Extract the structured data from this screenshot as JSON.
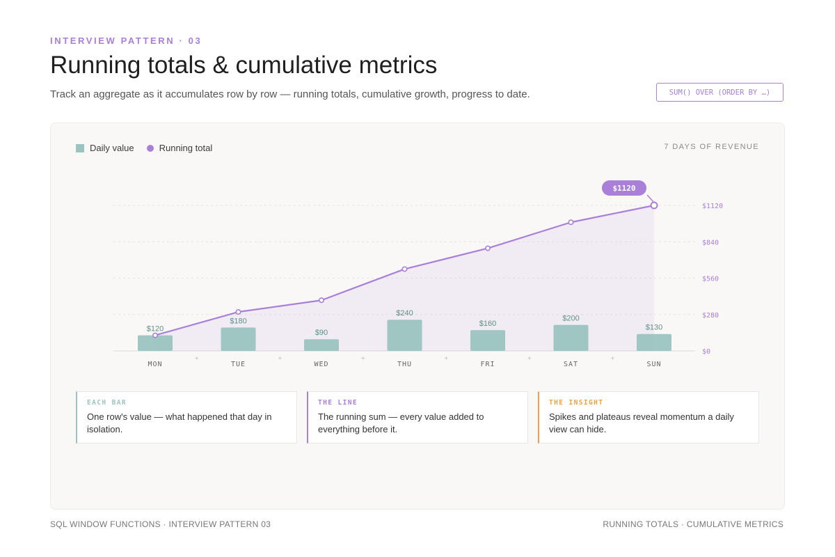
{
  "header": {
    "eyebrow": "INTERVIEW PATTERN · 03",
    "title": "Running totals & cumulative metrics",
    "subtitle": "Track an aggregate as it accumulates row by row — running totals, cumulative growth, progress to date.",
    "sql_chip": "SUM() OVER (ORDER BY …)"
  },
  "legend": {
    "bar_label": "Daily value",
    "line_label": "Running total"
  },
  "chart_meta": "7 DAYS OF REVENUE",
  "chart_data": {
    "type": "bar",
    "title": "",
    "categories": [
      "MON",
      "TUE",
      "WED",
      "THU",
      "FRI",
      "SAT",
      "SUN"
    ],
    "series": [
      {
        "name": "Daily value",
        "type": "bar",
        "values": [
          120,
          180,
          90,
          240,
          160,
          200,
          130
        ],
        "labels": [
          "$120",
          "$180",
          "$90",
          "$240",
          "$160",
          "$200",
          "$130"
        ]
      },
      {
        "name": "Running total",
        "type": "line",
        "values": [
          120,
          300,
          390,
          630,
          790,
          990,
          1120
        ]
      }
    ],
    "y_axis": {
      "ticks": [
        0,
        280,
        560,
        840,
        1120
      ],
      "tick_labels": [
        "$0",
        "$280",
        "$560",
        "$840",
        "$1120"
      ],
      "ylim": [
        0,
        1120
      ],
      "position": "right"
    },
    "callout": "$1120",
    "colors": {
      "bar": "#9bc4c1",
      "line": "#a97fd9",
      "tick": "#a97fd9"
    },
    "grid": true
  },
  "cards": [
    {
      "label": "EACH BAR",
      "text": "One row's value — what happened that day in isolation.",
      "color": "#9bc4c1"
    },
    {
      "label": "THE LINE",
      "text": "The running sum — every value added to everything before it.",
      "color": "#a97fd9"
    },
    {
      "label": "THE INSIGHT",
      "text": "Spikes and plateaus reveal momentum a daily view can hide.",
      "color": "#f0a142"
    }
  ],
  "footer": {
    "left": "SQL WINDOW FUNCTIONS · INTERVIEW PATTERN 03",
    "right": "RUNNING TOTALS · CUMULATIVE METRICS"
  }
}
